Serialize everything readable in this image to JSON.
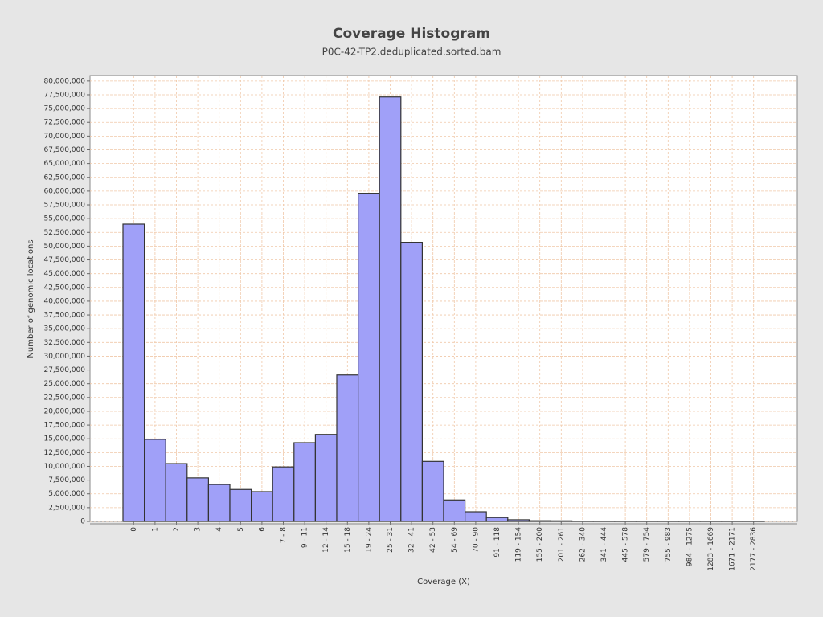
{
  "chart_data": {
    "type": "bar",
    "title": "Coverage Histogram",
    "subtitle": "P0C-42-TP2.deduplicated.sorted.bam",
    "x_label": "Coverage (X)",
    "y_label": "Number of genomic locations",
    "categories": [
      "0",
      "1",
      "2",
      "3",
      "4",
      "5",
      "6",
      "7 - 8",
      "9 - 11",
      "12 - 14",
      "15 - 18",
      "19 - 24",
      "25 - 31",
      "32 - 41",
      "42 - 53",
      "54 - 69",
      "70 - 90",
      "91 - 118",
      "119 - 154",
      "155 - 200",
      "201 - 261",
      "262 - 340",
      "341 - 444",
      "445 - 578",
      "579 - 754",
      "755 - 983",
      "984 - 1275",
      "1283 - 1669",
      "1671 - 2171",
      "2177 - 2836"
    ],
    "values": [
      54000000,
      14900000,
      10500000,
      7900000,
      6700000,
      5800000,
      5400000,
      9900000,
      14300000,
      15800000,
      26600000,
      59600000,
      77100000,
      50700000,
      10900000,
      3900000,
      1750000,
      700000,
      300000,
      120000,
      100000,
      50000,
      20000,
      10000,
      5000,
      3000,
      2000,
      1000,
      500,
      200
    ],
    "color": "#a0a0f8",
    "ylim": [
      0,
      81000000
    ],
    "yticks": [
      0,
      {
        "value": 2500000,
        "label": "2,500,000"
      },
      {
        "value": 5000000,
        "label": "5,000,000"
      },
      {
        "value": 7500000,
        "label": "7,500,000"
      },
      {
        "value": 10000000,
        "label": "10,000,000"
      },
      {
        "value": 12500000,
        "label": "12,500,000"
      },
      {
        "value": 15000000,
        "label": "15,000,000"
      },
      {
        "value": 17500000,
        "label": "17,500,000"
      },
      {
        "value": 20000000,
        "label": "20,000,000"
      },
      {
        "value": 22500000,
        "label": "22,500,000"
      },
      {
        "value": 25000000,
        "label": "25,000,000"
      },
      {
        "value": 27500000,
        "label": "27,500,000"
      },
      {
        "value": 30000000,
        "label": "30,000,000"
      },
      {
        "value": 32500000,
        "label": "32,500,000"
      },
      {
        "value": 35000000,
        "label": "35,000,000"
      },
      {
        "value": 37500000,
        "label": "37,500,000"
      },
      {
        "value": 40000000,
        "label": "40,000,000"
      },
      {
        "value": 42500000,
        "label": "42,500,000"
      },
      {
        "value": 45000000,
        "label": "45,000,000"
      },
      {
        "value": 47500000,
        "label": "47,500,000"
      },
      {
        "value": 50000000,
        "label": "50,000,000"
      },
      {
        "value": 52500000,
        "label": "52,500,000"
      },
      {
        "value": 55000000,
        "label": "55,000,000"
      },
      {
        "value": 57500000,
        "label": "57,500,000"
      },
      {
        "value": 60000000,
        "label": "60,000,000"
      },
      {
        "value": 62500000,
        "label": "62,500,000"
      },
      {
        "value": 65000000,
        "label": "65,000,000"
      },
      {
        "value": 67500000,
        "label": "67,500,000"
      },
      {
        "value": 70000000,
        "label": "70,000,000"
      },
      {
        "value": 72500000,
        "label": "72,500,000"
      },
      {
        "value": 75000000,
        "label": "75,000,000"
      },
      {
        "value": 77500000,
        "label": "77,500,000"
      },
      {
        "value": 80000000,
        "label": "80,000,000"
      }
    ],
    "grid": true
  }
}
